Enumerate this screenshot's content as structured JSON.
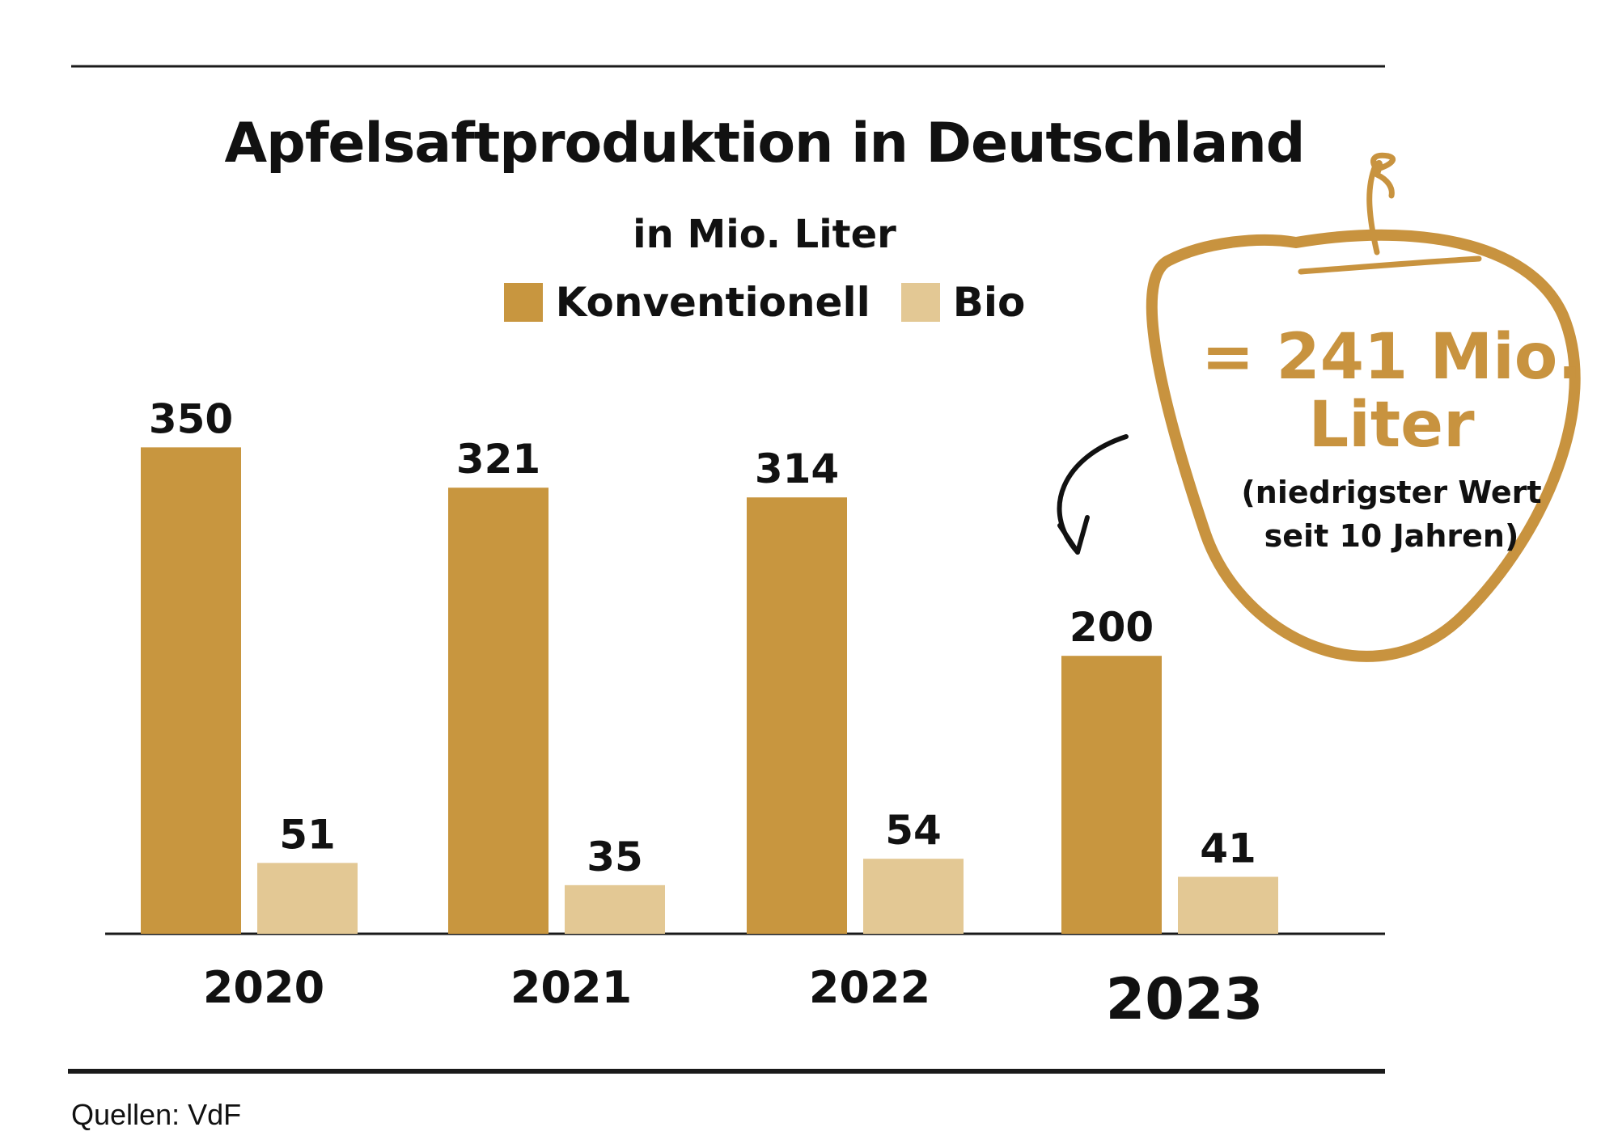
{
  "colors": {
    "konventionell": "#c8963f",
    "bio": "#e3c894",
    "accent": "#c8933f",
    "rule": "#1a1a1a"
  },
  "chart_data": {
    "type": "bar",
    "title": "Apfelsaftproduktion in Deutschland",
    "subtitle": "in Mio. Liter",
    "categories": [
      "2020",
      "2021",
      "2022",
      "2023"
    ],
    "highlighted_category": "2023",
    "series": [
      {
        "name": "Konventionell",
        "values": [
          350,
          321,
          314,
          200
        ]
      },
      {
        "name": "Bio",
        "values": [
          51,
          35,
          54,
          41
        ]
      }
    ],
    "data_labels": true,
    "legend": "top-center",
    "grid": false,
    "ylim": [
      0,
      400
    ]
  },
  "callout": {
    "value": "= 241 Mio. Liter",
    "note_line1": "(niedrigster Wert",
    "note_line2": "seit 10 Jahren)",
    "icon": "apple-outline-icon"
  },
  "source": "Quellen: VdF"
}
